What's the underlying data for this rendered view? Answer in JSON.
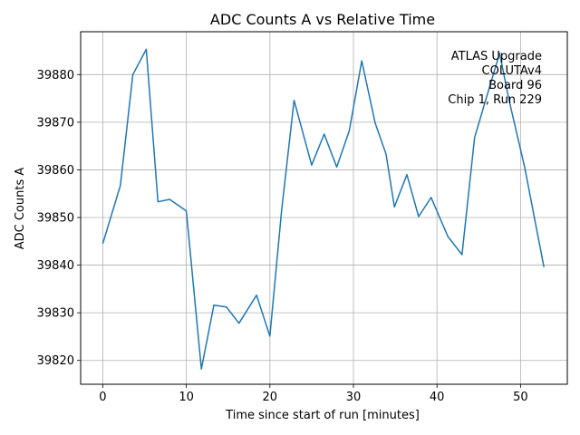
{
  "chart_data": {
    "type": "line",
    "title": "ADC Counts A vs Relative Time",
    "xlabel": "Time since start of run [minutes]",
    "ylabel": "ADC Counts A",
    "xlim": [
      -2.65,
      55.6
    ],
    "ylim": [
      39815,
      39889
    ],
    "xticks": [
      0,
      10,
      20,
      30,
      40,
      50
    ],
    "yticks": [
      39820,
      39830,
      39840,
      39850,
      39860,
      39870,
      39880
    ],
    "grid": true,
    "line_color": "#1f77b4",
    "annotation": [
      "ATLAS Upgrade",
      "COLUTAv4",
      "Board 96",
      "Chip 1, Run 229"
    ],
    "annotation_placement": "top-right",
    "series": [
      {
        "x": [
          0.0,
          2.1,
          3.6,
          5.2,
          6.6,
          8.0,
          10.0,
          11.8,
          13.3,
          14.8,
          16.3,
          18.4,
          20.0,
          21.4,
          22.9,
          25.0,
          26.5,
          28.0,
          29.5,
          31.0,
          32.6,
          33.9,
          34.9,
          36.4,
          37.8,
          39.3,
          41.3,
          43.0,
          44.5,
          47.5,
          48.6,
          50.5,
          52.8
        ],
        "y": [
          39844.5,
          39856.7,
          39880.0,
          39885.3,
          39853.3,
          39853.8,
          39851.4,
          39818.2,
          39831.6,
          39831.2,
          39827.8,
          39833.7,
          39825.1,
          39851.4,
          39874.6,
          39861.0,
          39867.5,
          39860.6,
          39868.2,
          39882.9,
          39869.8,
          39863.3,
          39852.2,
          39859.0,
          39850.2,
          39854.2,
          39846.0,
          39842.2,
          39866.8,
          39884.5,
          39874.8,
          39860.5,
          39839.6
        ]
      }
    ]
  }
}
